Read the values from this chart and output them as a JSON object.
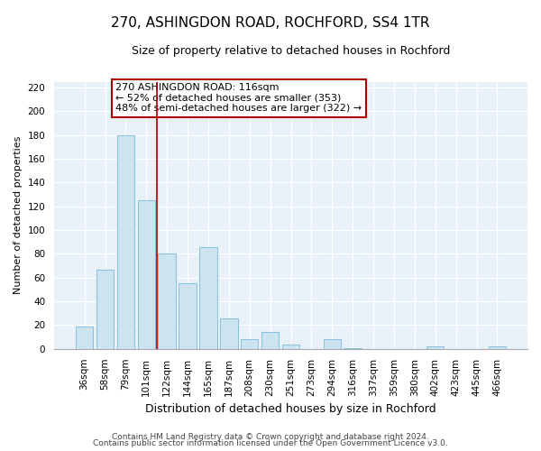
{
  "title": "270, ASHINGDON ROAD, ROCHFORD, SS4 1TR",
  "subtitle": "Size of property relative to detached houses in Rochford",
  "xlabel": "Distribution of detached houses by size in Rochford",
  "ylabel": "Number of detached properties",
  "categories": [
    "36sqm",
    "58sqm",
    "79sqm",
    "101sqm",
    "122sqm",
    "144sqm",
    "165sqm",
    "187sqm",
    "208sqm",
    "230sqm",
    "251sqm",
    "273sqm",
    "294sqm",
    "316sqm",
    "337sqm",
    "359sqm",
    "380sqm",
    "402sqm",
    "423sqm",
    "445sqm",
    "466sqm"
  ],
  "values": [
    19,
    67,
    180,
    125,
    80,
    55,
    86,
    26,
    8,
    14,
    4,
    0,
    8,
    1,
    0,
    0,
    0,
    2,
    0,
    0,
    2
  ],
  "bar_color": "#cce4f0",
  "bar_edge_color": "#7ab8d9",
  "highlight_line_index": 4,
  "highlight_line_color": "#aa0000",
  "annotation_box_text": "270 ASHINGDON ROAD: 116sqm\n← 52% of detached houses are smaller (353)\n48% of semi-detached houses are larger (322) →",
  "annotation_box_edge_color": "#aa0000",
  "ylim": [
    0,
    225
  ],
  "yticks": [
    0,
    20,
    40,
    60,
    80,
    100,
    120,
    140,
    160,
    180,
    200,
    220
  ],
  "footer_line1": "Contains HM Land Registry data © Crown copyright and database right 2024.",
  "footer_line2": "Contains public sector information licensed under the Open Government Licence v3.0.",
  "title_fontsize": 11,
  "subtitle_fontsize": 9,
  "xlabel_fontsize": 9,
  "ylabel_fontsize": 8,
  "tick_fontsize": 7.5,
  "footer_fontsize": 6.5,
  "annotation_fontsize": 8,
  "bg_color": "#ffffff",
  "plot_bg_color": "#e8f0f8"
}
